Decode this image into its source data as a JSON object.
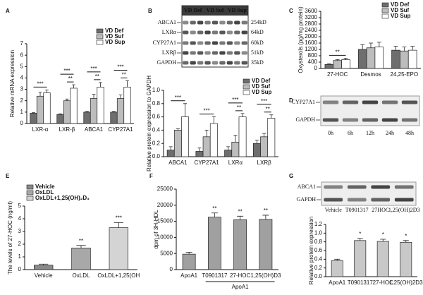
{
  "chart_data": [
    {
      "type": "bar",
      "panel": "A",
      "ylabel": "Relative mRNA expression",
      "categories": [
        "LXR-α",
        "LXR-β",
        "ABCA1",
        "CYP27A1"
      ],
      "series": [
        {
          "name": "VD Def",
          "color": "#6e6e6e",
          "values": [
            0.9,
            0.8,
            1.0,
            1.0
          ],
          "errors": [
            0.05,
            0.05,
            0.05,
            0.05
          ]
        },
        {
          "name": "VD Suf",
          "color": "#bdbdbd",
          "values": [
            2.4,
            2.0,
            2.2,
            2.2
          ],
          "errors": [
            0.35,
            0.15,
            0.35,
            0.3
          ]
        },
        {
          "name": "VD Sup",
          "color": "#ffffff",
          "values": [
            2.7,
            3.1,
            3.2,
            3.2
          ],
          "errors": [
            0.25,
            0.3,
            0.4,
            0.55
          ]
        }
      ],
      "ylim": [
        0,
        7
      ],
      "yticks": [
        0,
        1,
        2,
        3,
        4,
        5,
        6,
        7
      ],
      "legend": "top-right",
      "annotations": [
        {
          "text": "***",
          "category": 0,
          "series": [
            0,
            2
          ]
        },
        {
          "text": "**",
          "category": 1,
          "series": [
            1,
            2
          ]
        },
        {
          "text": "***",
          "category": 1,
          "series": [
            0,
            2
          ]
        },
        {
          "text": "**",
          "category": 2,
          "series": [
            1,
            2
          ]
        },
        {
          "text": "***",
          "category": 2,
          "series": [
            0,
            2
          ]
        },
        {
          "text": "**",
          "category": 3,
          "series": [
            1,
            2
          ]
        },
        {
          "text": "***",
          "category": 3,
          "series": [
            0,
            2
          ]
        }
      ]
    },
    {
      "type": "bar",
      "panel": "B",
      "ylabel": "Relative protein expression to GAPDH",
      "categories": [
        "ABCA1",
        "CYP27A1",
        "LXRα",
        "LXRβ"
      ],
      "series": [
        {
          "name": "VD Def",
          "color": "#6e6e6e",
          "values": [
            0.1,
            0.08,
            0.1,
            0.2
          ],
          "errors": [
            0.05,
            0.05,
            0.05,
            0.05
          ]
        },
        {
          "name": "VD Suf",
          "color": "#bdbdbd",
          "values": [
            0.4,
            0.3,
            0.22,
            0.3
          ],
          "errors": [
            0.02,
            0.1,
            0.1,
            0.05
          ]
        },
        {
          "name": "VD Sup",
          "color": "#ffffff",
          "values": [
            0.6,
            0.5,
            0.6,
            0.58
          ],
          "errors": [
            0.2,
            0.1,
            0.05,
            0.05
          ]
        }
      ],
      "ylim": [
        0,
        1
      ],
      "yticks": [
        {
          "value": 0,
          "label": "0.0"
        },
        0.2,
        0.4,
        0.6,
        0.8,
        {
          "value": 1,
          "label": "1.0"
        }
      ],
      "legend": "top-right",
      "annotations": [
        {
          "text": "***",
          "category": 0,
          "series": [
            0,
            2
          ]
        },
        {
          "text": "***",
          "category": 1,
          "series": [
            0,
            2
          ]
        },
        {
          "text": "**",
          "category": 2,
          "series": [
            1,
            2
          ]
        },
        {
          "text": "***",
          "category": 2,
          "series": [
            0,
            2
          ]
        },
        {
          "text": "**",
          "category": 3,
          "series": [
            1,
            2
          ]
        },
        {
          "text": "***",
          "category": 3,
          "series": [
            0,
            2
          ]
        }
      ]
    },
    {
      "type": "bar",
      "panel": "C",
      "ylabel": "Oxysterols (pg/mg protein)",
      "categories": [
        "27-HOC",
        "Desmos",
        "24,25-EPO"
      ],
      "series": [
        {
          "name": "VD Def",
          "color": "#6e6e6e",
          "values": [
            250,
            1200,
            1150
          ],
          "errors": [
            50,
            300,
            250
          ]
        },
        {
          "name": "VD Suf",
          "color": "#bdbdbd",
          "values": [
            500,
            1300,
            1100
          ],
          "errors": [
            60,
            300,
            250
          ]
        },
        {
          "name": "VD Sup",
          "color": "#ffffff",
          "values": [
            550,
            1350,
            1150
          ],
          "errors": [
            100,
            300,
            250
          ]
        }
      ],
      "ylim": [
        0,
        3600
      ],
      "yticks": [
        0,
        400,
        800,
        1200,
        1600,
        2000,
        2400,
        2800,
        3200,
        3600
      ],
      "legend": "top-right",
      "annotations": [
        {
          "text": "**",
          "category": 0,
          "series": [
            0,
            2
          ]
        }
      ]
    },
    {
      "type": "bar",
      "panel": "E",
      "ylabel": "The levels of 27-HOC (ng/ml)",
      "categories": [
        "Vehicle",
        "OxLDL",
        "OxLDL+1,25(OH"
      ],
      "series": [
        {
          "name": "Vehicle",
          "color": "#8a8a8a",
          "values": [
            0.35,
            null,
            null
          ],
          "errors": [
            0.08,
            null,
            null
          ]
        },
        {
          "name": "OxLDL",
          "color": "#a8a8a8",
          "values": [
            null,
            1.7,
            null
          ],
          "errors": [
            null,
            0.2,
            null
          ]
        },
        {
          "name": "OxLDL+1,25(OH)₂D₃",
          "color": "#d4d4d4",
          "values": [
            null,
            null,
            3.3
          ],
          "errors": [
            null,
            null,
            0.4
          ]
        }
      ],
      "ylim": [
        0,
        5
      ],
      "yticks": [
        0,
        1,
        2,
        3,
        4,
        5
      ],
      "legend": "top-left",
      "annotations": [
        {
          "text": "**",
          "category": 1,
          "series": [
            1
          ]
        },
        {
          "text": "***",
          "category": 2,
          "series": [
            2
          ]
        }
      ]
    },
    {
      "type": "bar",
      "panel": "F",
      "ylabel": "dpm of 3H-HDL",
      "categories": [
        "ApoA1",
        "T0901317",
        "27-HOC",
        "1,25(OH)D3"
      ],
      "series": [
        {
          "color": "#a0a0a0",
          "values": [
            4800,
            16300,
            15500,
            15600
          ],
          "errors": [
            600,
            1300,
            1100,
            1300
          ]
        }
      ],
      "ylim": [
        0,
        25000
      ],
      "yticks": [
        0,
        5000,
        10000,
        15000,
        20000,
        25000
      ],
      "group_label": {
        "text": "ApoA1",
        "categories": [
          1,
          3
        ]
      },
      "annotations": [
        {
          "text": "**",
          "category": 1,
          "series": [
            0
          ]
        },
        {
          "text": "**",
          "category": 2,
          "series": [
            0
          ]
        },
        {
          "text": "**",
          "category": 3,
          "series": [
            0
          ]
        }
      ]
    },
    {
      "type": "bar",
      "panel": "G",
      "ylabel": "Relative protein expression",
      "categories": [
        "ApoA1",
        "T0901317",
        "27-HOC",
        "1,25(OH)2D3"
      ],
      "series": [
        {
          "color": "#c8c8c8",
          "values": [
            0.37,
            0.83,
            0.81,
            0.79
          ],
          "errors": [
            0.03,
            0.05,
            0.05,
            0.04
          ]
        }
      ],
      "ylim": [
        0,
        1.2
      ],
      "yticks": [
        {
          "value": 0,
          "label": "0.0"
        },
        0.2,
        0.4,
        0.6,
        0.8,
        {
          "value": 1,
          "label": "1.0"
        },
        1.2
      ],
      "annotations": [
        {
          "text": "*",
          "category": 1,
          "series": [
            0
          ]
        },
        {
          "text": "*",
          "category": 2,
          "series": [
            0
          ]
        },
        {
          "text": "*",
          "category": 3,
          "series": [
            0
          ]
        }
      ]
    }
  ],
  "blots": [
    {
      "lanes": [
        "VD Def",
        "VD Suf",
        "VD Sup"
      ],
      "rows": [
        {
          "label": "ABCA1",
          "size": "254kD"
        },
        {
          "label": "LXRα",
          "size": "64kD"
        },
        {
          "label": "CYP27A1",
          "size": "60kD"
        },
        {
          "label": "LXRβ",
          "size": "51kD"
        },
        {
          "label": "GAPDH",
          "size": "35kD"
        }
      ]
    },
    {
      "panel": "D",
      "lanes": [
        "0h",
        "6h",
        "12h",
        "24h",
        "48h"
      ],
      "rows": [
        {
          "label": "CYP27A1"
        },
        {
          "label": "GAPDH"
        }
      ]
    },
    {
      "lanes": [
        "Vehicle",
        "T0901317",
        "27HOC",
        "1,25(OH)2D3"
      ],
      "rows": [
        {
          "label": "ABCA1"
        },
        {
          "label": "GAPDH"
        }
      ]
    }
  ]
}
